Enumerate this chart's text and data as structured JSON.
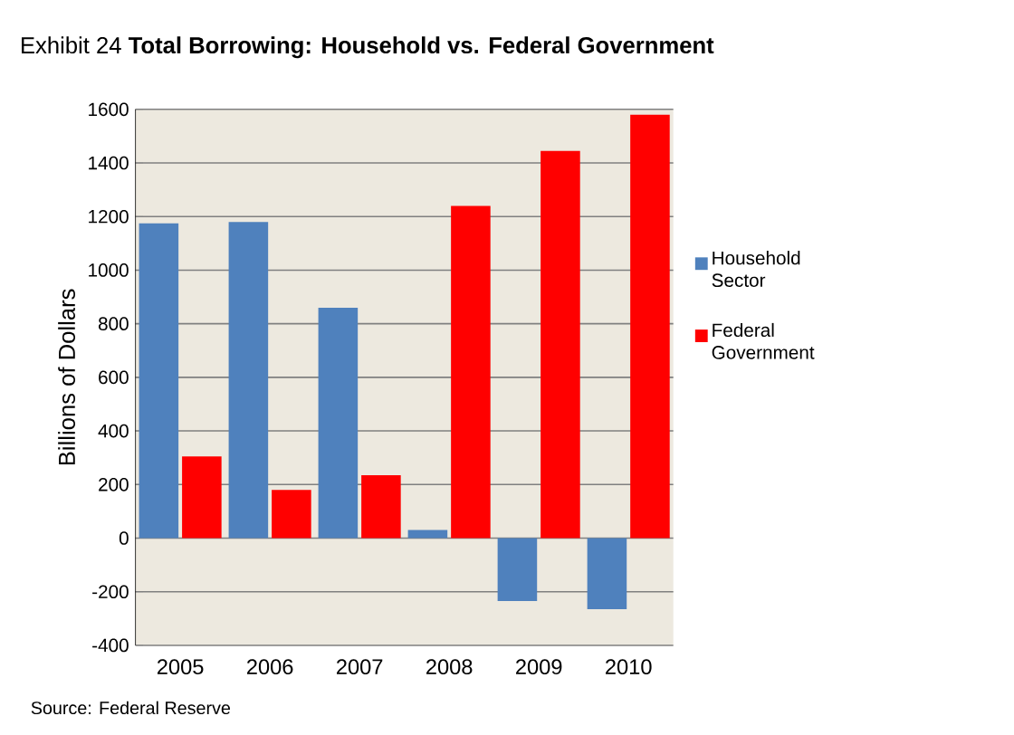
{
  "chart_data": {
    "type": "bar",
    "title": "Exhibit 24 **Total Borrowing: Household vs. Federal Government**",
    "ylabel": "Billions of Dollars",
    "categories": [
      "2005",
      "2006",
      "2007",
      "2008",
      "2009",
      "2010"
    ],
    "series": [
      {
        "name": "Household Sector",
        "color": "#4f81bd",
        "values": [
          1175,
          1180,
          860,
          30,
          -235,
          -265
        ]
      },
      {
        "name": "Federal Government",
        "color": "#ff0000",
        "values": [
          305,
          180,
          235,
          1240,
          1445,
          1580
        ]
      }
    ],
    "ylim": [
      -400,
      1600
    ],
    "yticks": [
      -400,
      -200,
      0,
      200,
      400,
      600,
      800,
      1000,
      1200,
      1400,
      1600
    ],
    "grid": "y",
    "legend": "right",
    "annotations": [
      "Source: Federal Reserve"
    ]
  }
}
